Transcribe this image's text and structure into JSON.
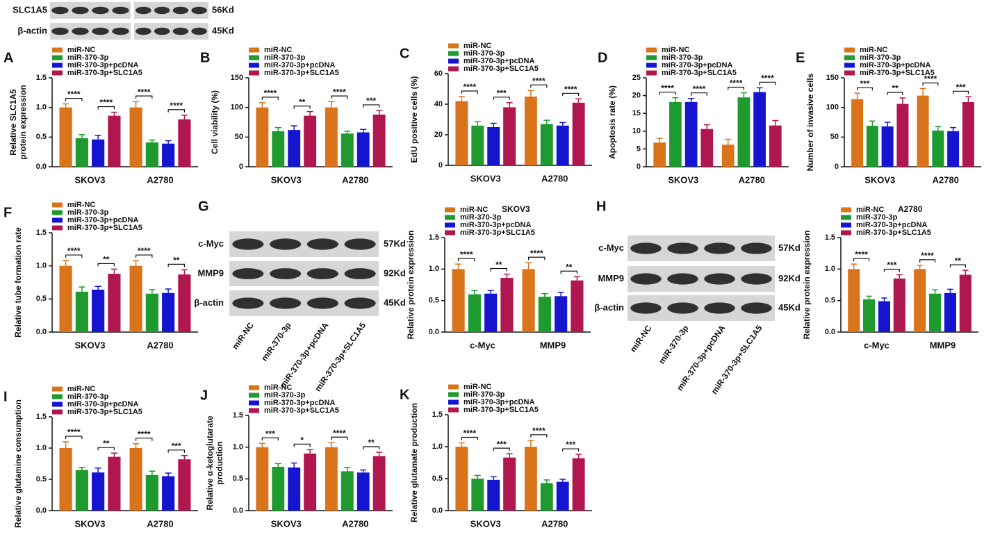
{
  "chart_data": [
    {
      "type": "bar",
      "panel": "A",
      "y_label": "Relative SLC1A5\nprotein expression",
      "categories": [
        "SKOV3",
        "A2780"
      ],
      "ylim": [
        0,
        1.5
      ],
      "yticks": [
        {
          "value": 0,
          "label": "0.0"
        },
        {
          "value": 0.5,
          "label": "0.5"
        },
        {
          "value": 1,
          "label": "1.0"
        },
        {
          "value": 1.5,
          "label": "1.5"
        }
      ],
      "series": [
        {
          "name": "miR-NC",
          "color": "#d9741b",
          "values": [
            1.0,
            1.0
          ],
          "errors": [
            0.06,
            0.1
          ]
        },
        {
          "name": "miR-370-3p",
          "color": "#1f9a2e",
          "values": [
            0.48,
            0.41
          ],
          "errors": [
            0.06,
            0.04
          ]
        },
        {
          "name": "miR-370-3p+pcDNA",
          "color": "#1515d0",
          "values": [
            0.46,
            0.39
          ],
          "errors": [
            0.07,
            0.05
          ]
        },
        {
          "name": "miR-370-3p+SLC1A5",
          "color": "#b0174f",
          "values": [
            0.86,
            0.8
          ],
          "errors": [
            0.06,
            0.07
          ]
        }
      ],
      "annotations": [
        [
          "****",
          "****"
        ],
        [
          "****",
          "****"
        ]
      ]
    },
    {
      "type": "bar",
      "panel": "B",
      "y_label": "Cell viability (%)",
      "categories": [
        "SKOV3",
        "A2780"
      ],
      "ylim": [
        0,
        150
      ],
      "yticks": [
        0,
        50,
        100,
        150
      ],
      "series": [
        {
          "name": "miR-NC",
          "color": "#d9741b",
          "values": [
            100,
            100
          ],
          "errors": [
            8,
            10
          ]
        },
        {
          "name": "miR-370-3p",
          "color": "#1f9a2e",
          "values": [
            60,
            56
          ],
          "errors": [
            6,
            4
          ]
        },
        {
          "name": "miR-370-3p+pcDNA",
          "color": "#1515d0",
          "values": [
            62,
            58
          ],
          "errors": [
            7,
            5
          ]
        },
        {
          "name": "miR-370-3p+SLC1A5",
          "color": "#b0174f",
          "values": [
            86,
            88
          ],
          "errors": [
            7,
            7
          ]
        }
      ],
      "annotations": [
        [
          "****",
          "**"
        ],
        [
          "****",
          "***"
        ]
      ]
    },
    {
      "type": "bar",
      "panel": "C",
      "y_label": "EdU positive cells (%)",
      "categories": [
        "SKOV3",
        "A2780"
      ],
      "ylim": [
        0,
        60
      ],
      "yticks": [
        0,
        20,
        40,
        60
      ],
      "series": [
        {
          "name": "miR-NC",
          "color": "#d9741b",
          "values": [
            42,
            45
          ],
          "errors": [
            3,
            4
          ]
        },
        {
          "name": "miR-370-3p",
          "color": "#1f9a2e",
          "values": [
            26,
            27
          ],
          "errors": [
            2.5,
            2.5
          ]
        },
        {
          "name": "miR-370-3p+pcDNA",
          "color": "#1515d0",
          "values": [
            25,
            26
          ],
          "errors": [
            2.5,
            2
          ]
        },
        {
          "name": "miR-370-3p+SLC1A5",
          "color": "#b0174f",
          "values": [
            38,
            41
          ],
          "errors": [
            3,
            2.5
          ]
        }
      ],
      "annotations": [
        [
          "****",
          "***"
        ],
        [
          "****",
          "****"
        ]
      ]
    },
    {
      "type": "bar",
      "panel": "D",
      "y_label": "Apoptosis rate (%)",
      "categories": [
        "SKOV3",
        "A2780"
      ],
      "ylim": [
        0,
        25
      ],
      "yticks": [
        0,
        5,
        10,
        15,
        20,
        25
      ],
      "series": [
        {
          "name": "miR-NC",
          "color": "#d9741b",
          "values": [
            6.8,
            6.2
          ],
          "errors": [
            1.2,
            1.5
          ]
        },
        {
          "name": "miR-370-3p",
          "color": "#1f9a2e",
          "values": [
            18.2,
            19.5
          ],
          "errors": [
            1.2,
            1.3
          ]
        },
        {
          "name": "miR-370-3p+pcDNA",
          "color": "#1515d0",
          "values": [
            18.2,
            21
          ],
          "errors": [
            1,
            1.2
          ]
        },
        {
          "name": "miR-370-3p+SLC1A5",
          "color": "#b0174f",
          "values": [
            10.6,
            11.6
          ],
          "errors": [
            1.2,
            1.4
          ]
        }
      ],
      "annotations": [
        [
          "****",
          "****"
        ],
        [
          "****",
          "****"
        ]
      ]
    },
    {
      "type": "bar",
      "panel": "E",
      "y_label": "Number of invasive cells",
      "categories": [
        "SKOV3",
        "A2780"
      ],
      "ylim": [
        0,
        150
      ],
      "yticks": [
        0,
        50,
        100,
        150
      ],
      "series": [
        {
          "name": "miR-NC",
          "color": "#d9741b",
          "values": [
            114,
            120
          ],
          "errors": [
            10,
            12
          ]
        },
        {
          "name": "miR-370-3p",
          "color": "#1f9a2e",
          "values": [
            69,
            61
          ],
          "errors": [
            8,
            7
          ]
        },
        {
          "name": "miR-370-3p+pcDNA",
          "color": "#1515d0",
          "values": [
            68,
            60
          ],
          "errors": [
            7,
            6
          ]
        },
        {
          "name": "miR-370-3p+SLC1A5",
          "color": "#b0174f",
          "values": [
            106,
            109
          ],
          "errors": [
            10,
            9
          ]
        }
      ],
      "annotations": [
        [
          "***",
          "**"
        ],
        [
          "****",
          "***"
        ]
      ]
    },
    {
      "type": "bar",
      "panel": "F",
      "y_label": "Relative tube formation rate",
      "categories": [
        "SKOV3",
        "A2780"
      ],
      "ylim": [
        0,
        1.5
      ],
      "yticks": [
        {
          "value": 0,
          "label": "0.0"
        },
        {
          "value": 0.5,
          "label": "0.5"
        },
        {
          "value": 1,
          "label": "1.0"
        },
        {
          "value": 1.5,
          "label": "1.5"
        }
      ],
      "series": [
        {
          "name": "miR-NC",
          "color": "#d9741b",
          "values": [
            1.0,
            1.0
          ],
          "errors": [
            0.08,
            0.08
          ]
        },
        {
          "name": "miR-370-3p",
          "color": "#1f9a2e",
          "values": [
            0.61,
            0.58
          ],
          "errors": [
            0.07,
            0.06
          ]
        },
        {
          "name": "miR-370-3p+pcDNA",
          "color": "#1515d0",
          "values": [
            0.64,
            0.59
          ],
          "errors": [
            0.05,
            0.06
          ]
        },
        {
          "name": "miR-370-3p+SLC1A5",
          "color": "#b0174f",
          "values": [
            0.88,
            0.87
          ],
          "errors": [
            0.07,
            0.07
          ]
        }
      ],
      "annotations": [
        [
          "****",
          "**"
        ],
        [
          "****",
          "**"
        ]
      ]
    },
    {
      "type": "bar",
      "subtitle": "SKOV3",
      "y_label": "Relative protein expression",
      "categories": [
        "c-Myc",
        "MMP9"
      ],
      "ylim": [
        0,
        1.5
      ],
      "yticks": [
        {
          "value": 0,
          "label": "0.0"
        },
        {
          "value": 0.5,
          "label": "0.5"
        },
        {
          "value": 1,
          "label": "1.0"
        },
        {
          "value": 1.5,
          "label": "1.5"
        }
      ],
      "series": [
        {
          "name": "miR-NC",
          "color": "#d9741b",
          "values": [
            1.0,
            1.0
          ],
          "errors": [
            0.08,
            0.1
          ]
        },
        {
          "name": "miR-370-3p",
          "color": "#1f9a2e",
          "values": [
            0.6,
            0.56
          ],
          "errors": [
            0.06,
            0.05
          ]
        },
        {
          "name": "miR-370-3p+pcDNA",
          "color": "#1515d0",
          "values": [
            0.61,
            0.57
          ],
          "errors": [
            0.05,
            0.06
          ]
        },
        {
          "name": "miR-370-3p+SLC1A5",
          "color": "#b0174f",
          "values": [
            0.86,
            0.82
          ],
          "errors": [
            0.06,
            0.06
          ]
        }
      ],
      "annotations": [
        [
          "****",
          "**"
        ],
        [
          "****",
          "**"
        ]
      ]
    },
    {
      "type": "bar",
      "subtitle": "A2780",
      "y_label": "Relative protein expression",
      "categories": [
        "c-Myc",
        "MMP9"
      ],
      "ylim": [
        0,
        1.5
      ],
      "yticks": [
        {
          "value": 0,
          "label": "0.0"
        },
        {
          "value": 0.5,
          "label": "0.5"
        },
        {
          "value": 1,
          "label": "1.0"
        },
        {
          "value": 1.5,
          "label": "1.5"
        }
      ],
      "series": [
        {
          "name": "miR-NC",
          "color": "#d9741b",
          "values": [
            1.0,
            1.0
          ],
          "errors": [
            0.08,
            0.06
          ]
        },
        {
          "name": "miR-370-3p",
          "color": "#1f9a2e",
          "values": [
            0.52,
            0.61
          ],
          "errors": [
            0.05,
            0.06
          ]
        },
        {
          "name": "miR-370-3p+pcDNA",
          "color": "#1515d0",
          "values": [
            0.49,
            0.62
          ],
          "errors": [
            0.05,
            0.06
          ]
        },
        {
          "name": "miR-370-3p+SLC1A5",
          "color": "#b0174f",
          "values": [
            0.85,
            0.91
          ],
          "errors": [
            0.06,
            0.07
          ]
        }
      ],
      "annotations": [
        [
          "****",
          "***"
        ],
        [
          "****",
          "**"
        ]
      ]
    },
    {
      "type": "bar",
      "panel": "I",
      "y_label": "Relative glutamine consumption",
      "categories": [
        "SKOV3",
        "A2780"
      ],
      "ylim": [
        0,
        1.5
      ],
      "yticks": [
        {
          "value": 0,
          "label": "0.0"
        },
        {
          "value": 0.5,
          "label": "0.5"
        },
        {
          "value": 1,
          "label": "1.0"
        },
        {
          "value": 1.5,
          "label": "1.5"
        }
      ],
      "series": [
        {
          "name": "miR-NC",
          "color": "#d9741b",
          "values": [
            1.0,
            1.0
          ],
          "errors": [
            0.1,
            0.07
          ]
        },
        {
          "name": "miR-370-3p",
          "color": "#1f9a2e",
          "values": [
            0.65,
            0.57
          ],
          "errors": [
            0.04,
            0.06
          ]
        },
        {
          "name": "miR-370-3p+pcDNA",
          "color": "#1515d0",
          "values": [
            0.61,
            0.55
          ],
          "errors": [
            0.07,
            0.05
          ]
        },
        {
          "name": "miR-370-3p+SLC1A5",
          "color": "#b0174f",
          "values": [
            0.86,
            0.82
          ],
          "errors": [
            0.06,
            0.06
          ]
        }
      ],
      "annotations": [
        [
          "****",
          "**"
        ],
        [
          "****",
          "***"
        ]
      ]
    },
    {
      "type": "bar",
      "panel": "J",
      "y_label": "Relative α-ketoglutarate\nproduction",
      "categories": [
        "SKOV3",
        "A2780"
      ],
      "ylim": [
        0,
        1.5
      ],
      "yticks": [
        {
          "value": 0,
          "label": "0.0"
        },
        {
          "value": 0.5,
          "label": "0.5"
        },
        {
          "value": 1,
          "label": "1.0"
        },
        {
          "value": 1.5,
          "label": "1.5"
        }
      ],
      "series": [
        {
          "name": "miR-NC",
          "color": "#d9741b",
          "values": [
            1.0,
            1.0
          ],
          "errors": [
            0.06,
            0.07
          ]
        },
        {
          "name": "miR-370-3p",
          "color": "#1f9a2e",
          "values": [
            0.69,
            0.62
          ],
          "errors": [
            0.05,
            0.06
          ]
        },
        {
          "name": "miR-370-3p+pcDNA",
          "color": "#1515d0",
          "values": [
            0.68,
            0.6
          ],
          "errors": [
            0.07,
            0.04
          ]
        },
        {
          "name": "miR-370-3p+SLC1A5",
          "color": "#b0174f",
          "values": [
            0.9,
            0.86
          ],
          "errors": [
            0.06,
            0.06
          ]
        }
      ],
      "annotations": [
        [
          "***",
          "*"
        ],
        [
          "****",
          "**"
        ]
      ]
    },
    {
      "type": "bar",
      "panel": "K",
      "y_label": "Relative glutamate production",
      "categories": [
        "SKOV3",
        "A2780"
      ],
      "ylim": [
        0,
        1.5
      ],
      "yticks": [
        {
          "value": 0,
          "label": "0.0"
        },
        {
          "value": 0.5,
          "label": "0.5"
        },
        {
          "value": 1,
          "label": "1.0"
        },
        {
          "value": 1.5,
          "label": "1.5"
        }
      ],
      "series": [
        {
          "name": "miR-NC",
          "color": "#d9741b",
          "values": [
            1.0,
            1.0
          ],
          "errors": [
            0.06,
            0.1
          ]
        },
        {
          "name": "miR-370-3p",
          "color": "#1f9a2e",
          "values": [
            0.5,
            0.43
          ],
          "errors": [
            0.05,
            0.05
          ]
        },
        {
          "name": "miR-370-3p+pcDNA",
          "color": "#1515d0",
          "values": [
            0.48,
            0.45
          ],
          "errors": [
            0.05,
            0.04
          ]
        },
        {
          "name": "miR-370-3p+SLC1A5",
          "color": "#b0174f",
          "values": [
            0.83,
            0.82
          ],
          "errors": [
            0.06,
            0.06
          ]
        }
      ],
      "annotations": [
        [
          "****",
          "***"
        ],
        [
          "****",
          "***"
        ]
      ]
    }
  ],
  "blots": [
    {
      "rows": [
        {
          "label": "SLC1A5",
          "size": "56Kd"
        },
        {
          "label": "β-actin",
          "size": "45Kd"
        }
      ]
    },
    {
      "panel": "G",
      "rows": [
        {
          "label": "c-Myc",
          "size": "57Kd"
        },
        {
          "label": "MMP9",
          "size": "92Kd"
        },
        {
          "label": "β-actin",
          "size": "45Kd"
        }
      ],
      "lanes": [
        "miR-NC",
        "miR-370-3p",
        "miR-370-3p+pcDNA",
        "miR-370-3p+SLC1A5"
      ]
    },
    {
      "panel": "H",
      "rows": [
        {
          "label": "c-Myc",
          "size": "57Kd"
        },
        {
          "label": "MMP9",
          "size": "92Kd"
        },
        {
          "label": "β-actin",
          "size": "45Kd"
        }
      ],
      "lanes": [
        "miR-NC",
        "miR-370-3p",
        "miR-370-3p+pcDNA",
        "miR-370-3p+SLC1A5"
      ]
    }
  ]
}
